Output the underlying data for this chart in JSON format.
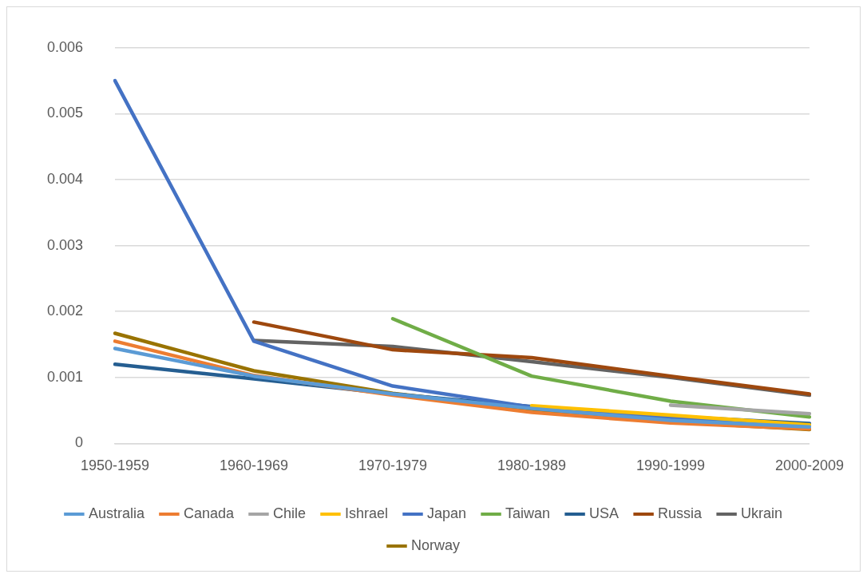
{
  "chart_data": {
    "type": "line",
    "categories": [
      "1950-1959",
      "1960-1969",
      "1970-1979",
      "1980-1989",
      "1990-1999",
      "2000-2009"
    ],
    "series": [
      {
        "name": "Australia",
        "color": "#5b9bd5",
        "values": [
          0.00144,
          0.00102,
          0.00075,
          0.00053,
          0.00035,
          0.00025
        ]
      },
      {
        "name": "Canada",
        "color": "#ed7d31",
        "values": [
          0.00155,
          0.00103,
          0.00073,
          0.00047,
          0.00031,
          0.00022
        ]
      },
      {
        "name": "Chile",
        "color": "#a5a5a5",
        "values": [
          null,
          null,
          null,
          null,
          0.00058,
          0.00045
        ]
      },
      {
        "name": "Ishrael",
        "color": "#ffc000",
        "values": [
          null,
          null,
          null,
          0.00057,
          0.00043,
          0.00028
        ]
      },
      {
        "name": "Japan",
        "color": "#4472c4",
        "values": [
          0.0055,
          0.00155,
          0.00087,
          0.00055,
          0.00038,
          0.00027
        ]
      },
      {
        "name": "Taiwan",
        "color": "#70ad47",
        "values": [
          null,
          null,
          0.00189,
          0.00102,
          0.00064,
          0.0004
        ]
      },
      {
        "name": "USA",
        "color": "#255e91",
        "values": [
          0.0012,
          0.00098,
          0.00075,
          0.00056,
          0.00041,
          0.0003
        ]
      },
      {
        "name": "Russia",
        "color": "#9e480e",
        "values": [
          null,
          0.00184,
          0.00142,
          0.0013,
          0.00102,
          0.00075
        ]
      },
      {
        "name": "Ukrain",
        "color": "#636363",
        "values": [
          null,
          0.00156,
          0.00147,
          0.00124,
          0.001,
          0.00073
        ]
      },
      {
        "name": "Norway",
        "color": "#997300",
        "values": [
          0.00167,
          0.0011,
          0.00076,
          0.00052,
          0.00033,
          0.00021
        ]
      }
    ],
    "ylim": [
      0,
      0.006
    ],
    "yticks": [
      0,
      0.001,
      0.002,
      0.003,
      0.004,
      0.005,
      0.006
    ],
    "grid": "y",
    "legend": "bottom",
    "marker": "none",
    "line_style": "solid"
  }
}
